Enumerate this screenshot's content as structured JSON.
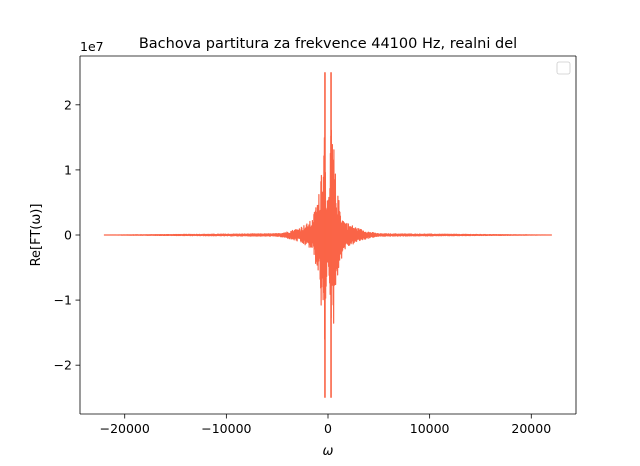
{
  "chart_data": {
    "type": "line",
    "title": "Bachova partitura za frekvence 44100 Hz, realni del",
    "xlabel": "ω",
    "ylabel": "Re[FT(ω)]",
    "y_offset_label": "1e7",
    "xlim": [
      -24400,
      24400
    ],
    "ylim": [
      -2.75,
      2.75
    ],
    "y_unit_scale": 10000000,
    "xticks": [
      -20000,
      -10000,
      0,
      10000,
      20000
    ],
    "xtick_labels": [
      "−20000",
      "−10000",
      "0",
      "10000",
      "20000"
    ],
    "yticks": [
      2,
      1,
      0,
      -1,
      -2
    ],
    "ytick_labels": [
      "2",
      "1",
      "0",
      "−1",
      "−2"
    ],
    "grid": false,
    "legend": {
      "placement": "top-right",
      "entries": []
    },
    "series": [
      {
        "color": "#fa6447",
        "x_range": [
          -22050,
          22050
        ],
        "envelope": [
          {
            "x": -22050,
            "y": 0
          },
          {
            "x": -5000,
            "y": 0.02
          },
          {
            "x": -4000,
            "y": 0.05
          },
          {
            "x": -3000,
            "y": 0.1
          },
          {
            "x": -2000,
            "y": 0.18
          },
          {
            "x": -1500,
            "y": 0.25
          },
          {
            "x": -1000,
            "y": 0.6
          },
          {
            "x": -800,
            "y": 0.7
          },
          {
            "x": -600,
            "y": 1.4
          },
          {
            "x": -400,
            "y": 1.45
          },
          {
            "x": -300,
            "y": 2.5
          },
          {
            "x": -200,
            "y": 0.9
          },
          {
            "x": -100,
            "y": 0.6
          },
          {
            "x": 0,
            "y": 0.5
          },
          {
            "x": 100,
            "y": 0.6
          },
          {
            "x": 200,
            "y": 0.9
          },
          {
            "x": 300,
            "y": 2.5
          },
          {
            "x": 400,
            "y": 1.45
          },
          {
            "x": 600,
            "y": 1.4
          },
          {
            "x": 800,
            "y": 0.7
          },
          {
            "x": 1000,
            "y": 0.6
          },
          {
            "x": 1500,
            "y": 0.25
          },
          {
            "x": 2000,
            "y": 0.18
          },
          {
            "x": 3000,
            "y": 0.1
          },
          {
            "x": 4000,
            "y": 0.05
          },
          {
            "x": 5000,
            "y": 0.02
          },
          {
            "x": 22050,
            "y": 0
          }
        ]
      }
    ]
  }
}
